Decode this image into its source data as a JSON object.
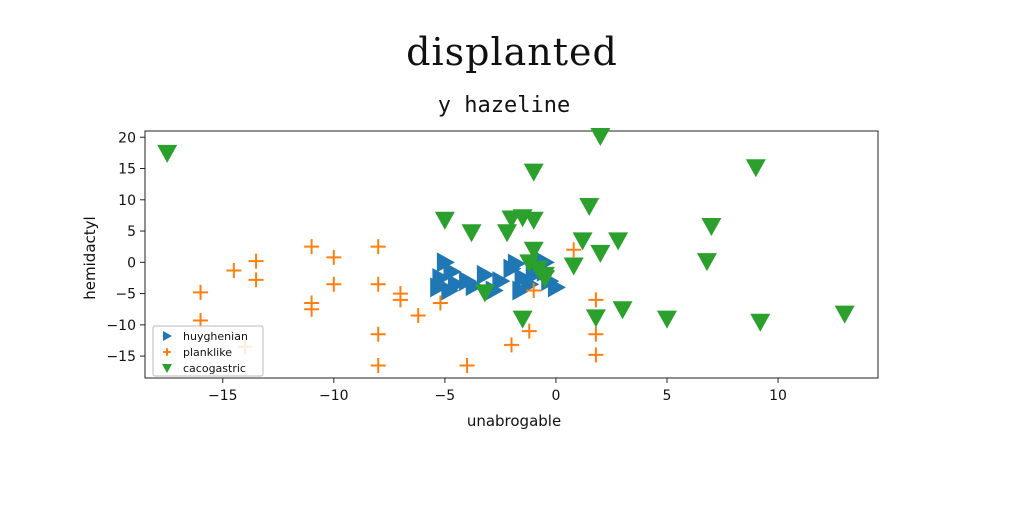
{
  "suptitle": "displanted",
  "chart_data": {
    "type": "scatter",
    "title": "y hazeline",
    "xlabel": "unabrogable",
    "ylabel": "hemidactyl",
    "xlim": [
      -18.5,
      14.5
    ],
    "ylim": [
      -18.5,
      21
    ],
    "xticks": [
      -15,
      -10,
      -5,
      0,
      5,
      10
    ],
    "xtick_labels": [
      "−15",
      "−10",
      "−5",
      "0",
      "5",
      "10"
    ],
    "yticks": [
      -15,
      -10,
      -5,
      0,
      5,
      10,
      15,
      20
    ],
    "ytick_labels": [
      "−15",
      "−10",
      "−5",
      "0",
      "5",
      "10",
      "15",
      "20"
    ],
    "grid": false,
    "legend": "lower-left",
    "series": [
      {
        "name": "huyghenian",
        "marker": "triangle-right",
        "color": "#1f77b4",
        "points": [
          [
            -5.0,
            0.0
          ],
          [
            -4.7,
            -1.5
          ],
          [
            -5.2,
            -2.5
          ],
          [
            -4.5,
            -3.5
          ],
          [
            -4.0,
            -3.0
          ],
          [
            -5.3,
            -4.0
          ],
          [
            -4.8,
            -4.5
          ],
          [
            -3.7,
            -3.8
          ],
          [
            -3.2,
            -2.0
          ],
          [
            -2.5,
            -3.0
          ],
          [
            -2.8,
            -4.5
          ],
          [
            -2.0,
            -1.0
          ],
          [
            -1.8,
            -0.2
          ],
          [
            -1.5,
            -2.5
          ],
          [
            -1.2,
            -3.5
          ],
          [
            -1.0,
            -2.0
          ],
          [
            -0.8,
            -0.5
          ],
          [
            -0.5,
            -1.5
          ],
          [
            -0.3,
            -3.0
          ],
          [
            0.0,
            -4.0
          ],
          [
            -1.6,
            -4.5
          ],
          [
            -0.5,
            0.0
          ]
        ]
      },
      {
        "name": "planklike",
        "marker": "plus",
        "color": "#ff7f0e",
        "points": [
          [
            -16.0,
            -4.8
          ],
          [
            -16.0,
            -9.3
          ],
          [
            -14.5,
            -1.3
          ],
          [
            -13.5,
            0.2
          ],
          [
            -13.5,
            -2.8
          ],
          [
            -14.0,
            -13.5
          ],
          [
            -11.0,
            2.5
          ],
          [
            -11.0,
            -6.5
          ],
          [
            -11.0,
            -7.5
          ],
          [
            -10.0,
            0.8
          ],
          [
            -10.0,
            -3.5
          ],
          [
            -8.0,
            2.5
          ],
          [
            -8.0,
            -3.5
          ],
          [
            -8.0,
            -11.5
          ],
          [
            -8.0,
            -16.5
          ],
          [
            -7.0,
            -5.0
          ],
          [
            -7.0,
            -6.0
          ],
          [
            -6.2,
            -8.5
          ],
          [
            -5.2,
            -6.5
          ],
          [
            -4.0,
            -16.5
          ],
          [
            -2.0,
            -13.2
          ],
          [
            -1.2,
            -11.0
          ],
          [
            -1.0,
            -4.5
          ],
          [
            0.8,
            2.0
          ],
          [
            1.8,
            -6.0
          ],
          [
            1.8,
            -11.5
          ],
          [
            1.8,
            -14.8
          ]
        ]
      },
      {
        "name": "cacogastric",
        "marker": "triangle-down",
        "color": "#2ca02c",
        "points": [
          [
            -17.5,
            17.5
          ],
          [
            2.0,
            20.2
          ],
          [
            -1.0,
            14.5
          ],
          [
            9.0,
            15.2
          ],
          [
            1.5,
            9.0
          ],
          [
            -5.0,
            6.8
          ],
          [
            -3.8,
            4.8
          ],
          [
            -2.2,
            4.8
          ],
          [
            -2.0,
            7.0
          ],
          [
            -1.5,
            7.2
          ],
          [
            -1.0,
            6.8
          ],
          [
            -1.0,
            2.0
          ],
          [
            -1.2,
            0.0
          ],
          [
            -0.8,
            -1.0
          ],
          [
            -0.5,
            -2.0
          ],
          [
            0.8,
            -0.5
          ],
          [
            1.2,
            3.5
          ],
          [
            2.0,
            1.5
          ],
          [
            2.8,
            3.5
          ],
          [
            7.0,
            5.8
          ],
          [
            6.8,
            0.2
          ],
          [
            -3.2,
            -4.8
          ],
          [
            -1.5,
            -9.0
          ],
          [
            1.8,
            -8.8
          ],
          [
            3.0,
            -7.5
          ],
          [
            5.0,
            -9.0
          ],
          [
            9.2,
            -9.5
          ],
          [
            13.0,
            -8.2
          ],
          [
            -0.5,
            -2.5
          ]
        ]
      }
    ]
  }
}
